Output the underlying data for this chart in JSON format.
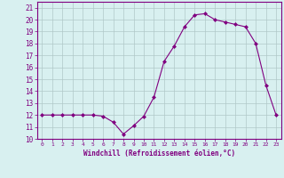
{
  "x": [
    0,
    1,
    2,
    3,
    4,
    5,
    6,
    7,
    8,
    9,
    10,
    11,
    12,
    13,
    14,
    15,
    16,
    17,
    18,
    19,
    20,
    21,
    22,
    23
  ],
  "y": [
    12,
    12,
    12,
    12,
    12,
    12,
    11.9,
    11.4,
    10.4,
    11.1,
    11.9,
    13.5,
    16.5,
    17.8,
    19.4,
    20.4,
    20.5,
    20.0,
    19.8,
    19.6,
    19.4,
    18.0,
    14.5,
    12.0
  ],
  "line_color": "#800080",
  "marker": "D",
  "marker_size": 2,
  "bg_color": "#d8f0f0",
  "grid_color": "#b0c8c8",
  "xlabel": "Windchill (Refroidissement éolien,°C)",
  "ylim": [
    10,
    21.5
  ],
  "xlim": [
    -0.5,
    23.5
  ],
  "yticks": [
    10,
    11,
    12,
    13,
    14,
    15,
    16,
    17,
    18,
    19,
    20,
    21
  ],
  "xticks": [
    0,
    1,
    2,
    3,
    4,
    5,
    6,
    7,
    8,
    9,
    10,
    11,
    12,
    13,
    14,
    15,
    16,
    17,
    18,
    19,
    20,
    21,
    22,
    23
  ],
  "tick_color": "#800080",
  "label_color": "#800080",
  "axis_color": "#800080",
  "spine_color": "#800080",
  "font_family": "monospace"
}
